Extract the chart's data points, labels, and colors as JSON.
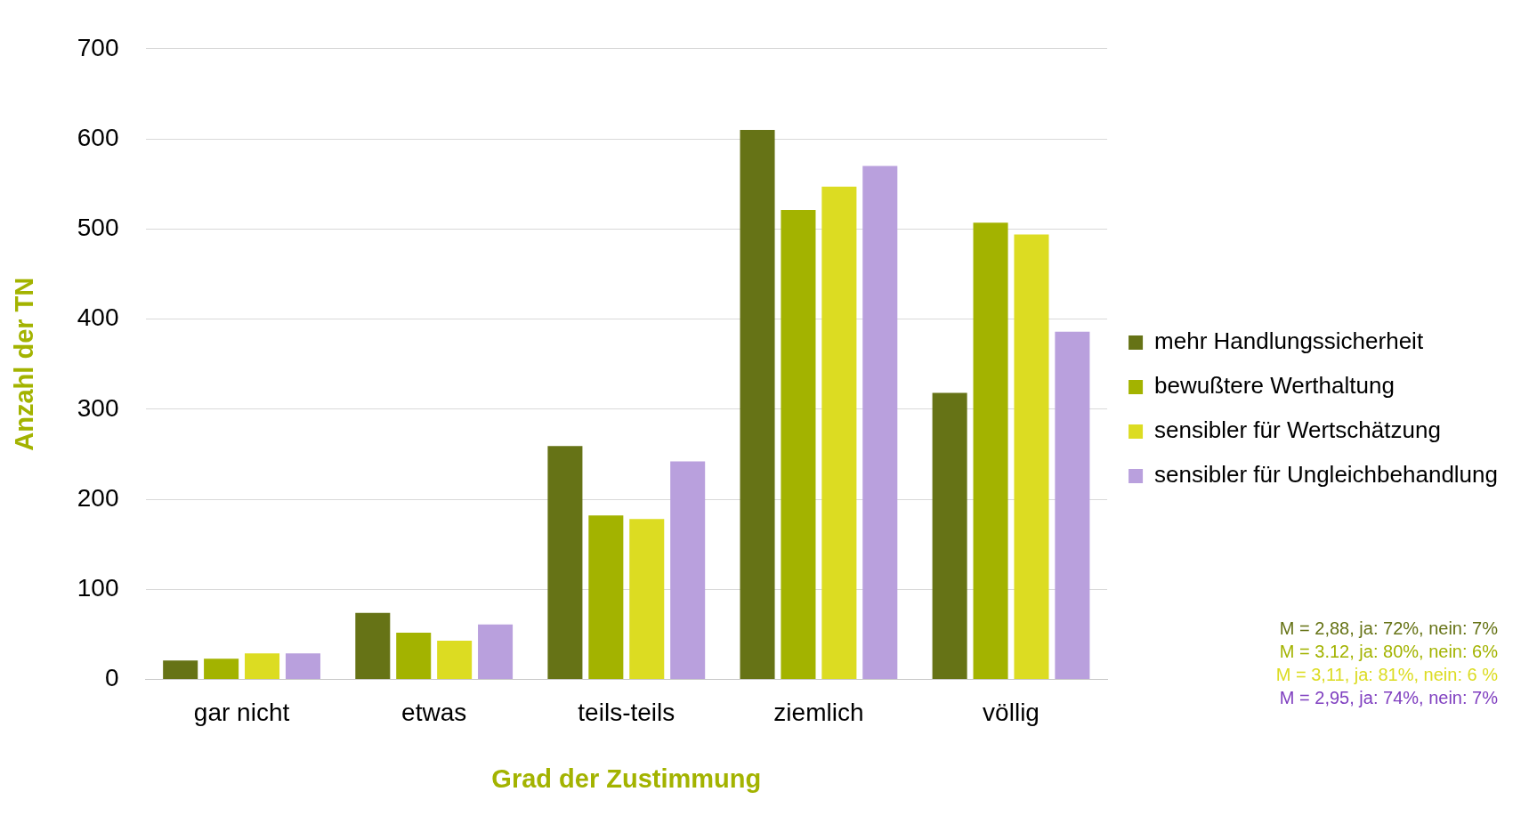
{
  "chart_data": {
    "type": "bar",
    "xlabel": "Grad der Zustimmung",
    "ylabel": "Anzahl der TN",
    "categories": [
      "gar nicht",
      "etwas",
      "teils-teils",
      "ziemlich",
      "völlig"
    ],
    "series": [
      {
        "name": "mehr Handlungssicherheit",
        "color": "#667316",
        "values": [
          21,
          74,
          259,
          610,
          318
        ]
      },
      {
        "name": "bewußtere Werthaltung",
        "color": "#a3b300",
        "values": [
          23,
          52,
          182,
          521,
          507
        ]
      },
      {
        "name": "sensibler für Wertschätzung",
        "color": "#dcdc22",
        "values": [
          29,
          43,
          178,
          547,
          494
        ]
      },
      {
        "name": "sensibler für Ungleichbehandlung",
        "color": "#b9a0dd",
        "values": [
          29,
          61,
          242,
          570,
          386
        ]
      }
    ],
    "ylim": [
      0,
      700
    ],
    "yticks": [
      0,
      100,
      200,
      300,
      400,
      500,
      600,
      700
    ],
    "grid": "y",
    "legend": "right",
    "annotations": [
      "M = 2,88, ja: 72%, nein: 7%",
      "M = 3.12, ja: 80%, nein: 6%",
      "M = 3,11, ja: 81%, nein: 6 %",
      "M = 2,95, ja: 74%, nein: 7%"
    ]
  }
}
